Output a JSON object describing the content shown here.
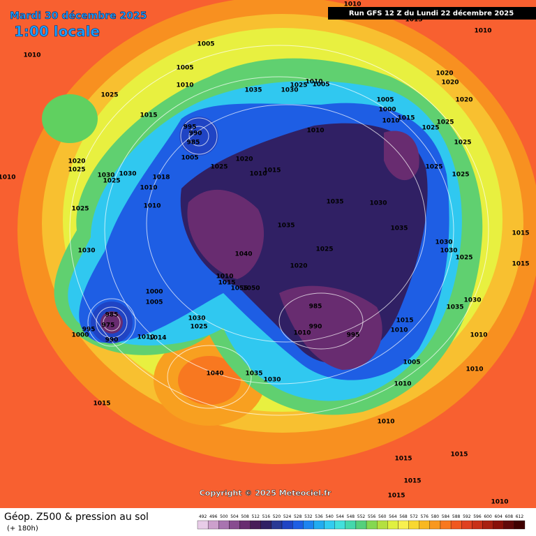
{
  "header": {
    "date": "Mardi 30 décembre 2025",
    "time": "1:00 locale",
    "run": "Run GFS 12 Z du Lundi 22 décembre 2025"
  },
  "copyright": "Copyright © 2025 Meteociel.fr",
  "footer": {
    "title": "Géop. Z500 & pression au sol",
    "lead": "(+ 180h)"
  },
  "colorbar": {
    "values": [
      492,
      496,
      500,
      504,
      508,
      512,
      516,
      520,
      524,
      528,
      532,
      536,
      540,
      544,
      548,
      552,
      556,
      560,
      564,
      568,
      572,
      576,
      580,
      584,
      588,
      592,
      596,
      600,
      604,
      608,
      612
    ],
    "colors": [
      "#e8cce8",
      "#cca0cc",
      "#a874b0",
      "#884c90",
      "#682c70",
      "#481c58",
      "#302064",
      "#283894",
      "#2044c4",
      "#1e5ee4",
      "#1e84f0",
      "#22acf0",
      "#32ccf0",
      "#42e0dc",
      "#44d8ac",
      "#54d07c",
      "#84d850",
      "#b4e040",
      "#e0f040",
      "#f8f050",
      "#f8d830",
      "#f8b820",
      "#f89820",
      "#f87820",
      "#f05820",
      "#e04020",
      "#c83018",
      "#a82010",
      "#881008",
      "#600808",
      "#400000"
    ]
  },
  "isobars": [
    1010,
    1025,
    1015,
    1005,
    1005,
    1010,
    995,
    990,
    985,
    1005,
    1025,
    1020,
    1010,
    1015,
    1035,
    1030,
    1025,
    1010,
    1005,
    1010,
    1005,
    1000,
    1010,
    1015,
    1010,
    1020,
    1020,
    1020,
    1025,
    1025,
    1025,
    1025,
    1025,
    1010,
    1035,
    1030,
    1035,
    1035,
    1040,
    1025,
    1020,
    1030,
    1030,
    1025,
    1015,
    1015,
    1020,
    1025,
    1030,
    1025,
    1030,
    1018,
    1010,
    1010,
    1025,
    1030,
    1010,
    1000,
    1005,
    985,
    975,
    995,
    1000,
    990,
    1010,
    1014,
    1030,
    1025,
    1010,
    1015,
    1055,
    1050,
    985,
    990,
    1010,
    995,
    1015,
    1010,
    1005,
    1010,
    1010,
    1010,
    1010,
    1035,
    1030,
    1040,
    1035,
    1030,
    1015,
    1015,
    1015,
    1015,
    1015,
    1010,
    1015
  ]
}
